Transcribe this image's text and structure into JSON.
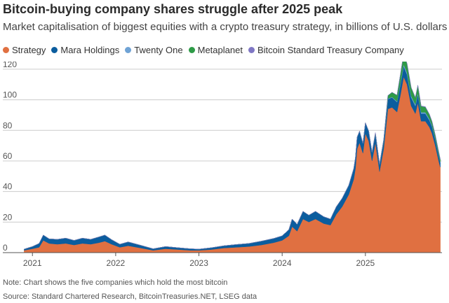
{
  "title": "Bitcoin-buying company shares struggle after 2025 peak",
  "subtitle": "Market capitalisation of biggest equities with a crypto treasury strategy, in billions of U.S. dollars",
  "note": "Note: Chart shows the five companies which hold the most bitcoin",
  "source": "Source: Standard Chartered Research, BitcoinTreasuries.NET, LSEG data",
  "chart_data": {
    "type": "area",
    "stacked": true,
    "title": "Bitcoin-buying company shares struggle after 2025 peak",
    "subtitle": "Market capitalisation of biggest equities with a crypto treasury strategy, in billions of U.S. dollars",
    "xlabel": "",
    "ylabel": "",
    "xlim": [
      2020.88,
      2025.92
    ],
    "ylim": [
      0,
      125
    ],
    "yticks": [
      0,
      20,
      40,
      60,
      80,
      100,
      120
    ],
    "xticks": [
      {
        "value": 2021.0,
        "label": "2021"
      },
      {
        "value": 2022.0,
        "label": "2022"
      },
      {
        "value": 2023.0,
        "label": "2023"
      },
      {
        "value": 2024.0,
        "label": "2024"
      },
      {
        "value": 2025.0,
        "label": "2025"
      }
    ],
    "grid": true,
    "legend_position": "top-left",
    "x": [
      2020.9,
      2021.0,
      2021.08,
      2021.13,
      2021.2,
      2021.3,
      2021.4,
      2021.5,
      2021.6,
      2021.7,
      2021.8,
      2021.87,
      2021.95,
      2022.05,
      2022.15,
      2022.3,
      2022.45,
      2022.6,
      2022.75,
      2022.9,
      2023.0,
      2023.15,
      2023.3,
      2023.45,
      2023.6,
      2023.75,
      2023.9,
      2024.0,
      2024.08,
      2024.12,
      2024.18,
      2024.25,
      2024.32,
      2024.4,
      2024.5,
      2024.58,
      2024.65,
      2024.72,
      2024.8,
      2024.86,
      2024.88,
      2024.9,
      2024.93,
      2024.97,
      2025.0,
      2025.04,
      2025.08,
      2025.12,
      2025.17,
      2025.22,
      2025.27,
      2025.32,
      2025.38,
      2025.42,
      2025.46,
      2025.5,
      2025.55,
      2025.6,
      2025.63,
      2025.67,
      2025.72,
      2025.77,
      2025.8,
      2025.84,
      2025.88,
      2025.9
    ],
    "series": [
      {
        "name": "Strategy",
        "color": "#e07041",
        "values": [
          1.5,
          2.5,
          3.5,
          8,
          6,
          5.5,
          6,
          5,
          6,
          5.5,
          6.5,
          7.5,
          5.5,
          3.5,
          4.5,
          3,
          1.5,
          2.5,
          2,
          1.5,
          1.5,
          2,
          3,
          3.5,
          4,
          5,
          6.5,
          8,
          11,
          17,
          14,
          22,
          20,
          22,
          19,
          18,
          25,
          30,
          38,
          48,
          55,
          68,
          72,
          65,
          78,
          73,
          60,
          72,
          53,
          68,
          94,
          95,
          92,
          103,
          115,
          110,
          96,
          91,
          98,
          86,
          86,
          82,
          78,
          70,
          60,
          56
        ]
      },
      {
        "name": "Mara Holdings",
        "color": "#0b5d9e",
        "values": [
          0.8,
          1.5,
          2.5,
          3.5,
          3.0,
          3.2,
          3.5,
          3.0,
          3.5,
          3.2,
          3.8,
          4.0,
          3.0,
          2.0,
          2.5,
          1.8,
          1.0,
          1.5,
          1.2,
          1.0,
          0.8,
          1.2,
          1.5,
          1.8,
          2.0,
          2.5,
          2.8,
          3.0,
          4.0,
          5.0,
          4.5,
          5.0,
          4.5,
          5.0,
          4.5,
          4.0,
          5.0,
          5.5,
          6.0,
          7.0,
          7.0,
          7.5,
          7.5,
          6.5,
          7.0,
          6.5,
          5.5,
          6.0,
          4.5,
          5.0,
          6.5,
          6.5,
          6.5,
          7.0,
          7.0,
          6.5,
          5.5,
          5.0,
          5.5,
          5.0,
          5.0,
          4.5,
          4.5,
          4.0,
          3.5,
          3.0
        ]
      },
      {
        "name": "Twenty One",
        "color": "#6fa3d5",
        "values": [
          0,
          0,
          0,
          0,
          0,
          0,
          0,
          0,
          0,
          0,
          0,
          0,
          0,
          0,
          0,
          0,
          0,
          0,
          0,
          0,
          0,
          0,
          0,
          0,
          0,
          0,
          0,
          0,
          0,
          0,
          0,
          0,
          0,
          0,
          0,
          0,
          0,
          0,
          0,
          0,
          0,
          0,
          0,
          0,
          0,
          0,
          0,
          0,
          0,
          0,
          0.3,
          0.4,
          0.5,
          1.0,
          1.2,
          1.2,
          1.0,
          1.0,
          1.0,
          0.8,
          0.8,
          0.8,
          0.7,
          0.6,
          0.5,
          0.5
        ]
      },
      {
        "name": "Metaplanet",
        "color": "#2e9b47",
        "values": [
          0,
          0,
          0,
          0,
          0,
          0,
          0,
          0,
          0,
          0,
          0,
          0,
          0,
          0,
          0,
          0,
          0,
          0,
          0,
          0,
          0,
          0,
          0,
          0,
          0,
          0,
          0,
          0,
          0,
          0,
          0,
          0,
          0,
          0,
          0,
          0,
          0,
          0,
          0,
          0,
          0,
          0,
          0,
          0,
          0,
          0,
          0.2,
          0.5,
          0.5,
          1.0,
          2.0,
          3.0,
          4.0,
          5.5,
          7.0,
          6.0,
          5.5,
          4.5,
          5.0,
          4.0,
          3.5,
          3.0,
          2.5,
          2.2,
          2.0,
          1.5
        ]
      },
      {
        "name": "Bitcoin Standard Treasury Company",
        "color": "#7f77c4",
        "values": [
          0,
          0,
          0,
          0,
          0,
          0,
          0,
          0,
          0,
          0,
          0,
          0,
          0,
          0,
          0,
          0,
          0,
          0,
          0,
          0,
          0,
          0,
          0,
          0,
          0,
          0,
          0,
          0,
          0,
          0,
          0,
          0,
          0,
          0,
          0,
          0,
          0,
          0,
          0,
          0,
          0,
          0,
          0,
          0,
          0,
          0,
          0,
          0,
          0,
          0,
          0,
          0,
          0,
          0,
          0,
          0,
          0,
          0,
          0,
          0.2,
          0.2,
          0.2,
          0.2,
          0.2,
          0.2,
          0.2
        ]
      }
    ]
  }
}
